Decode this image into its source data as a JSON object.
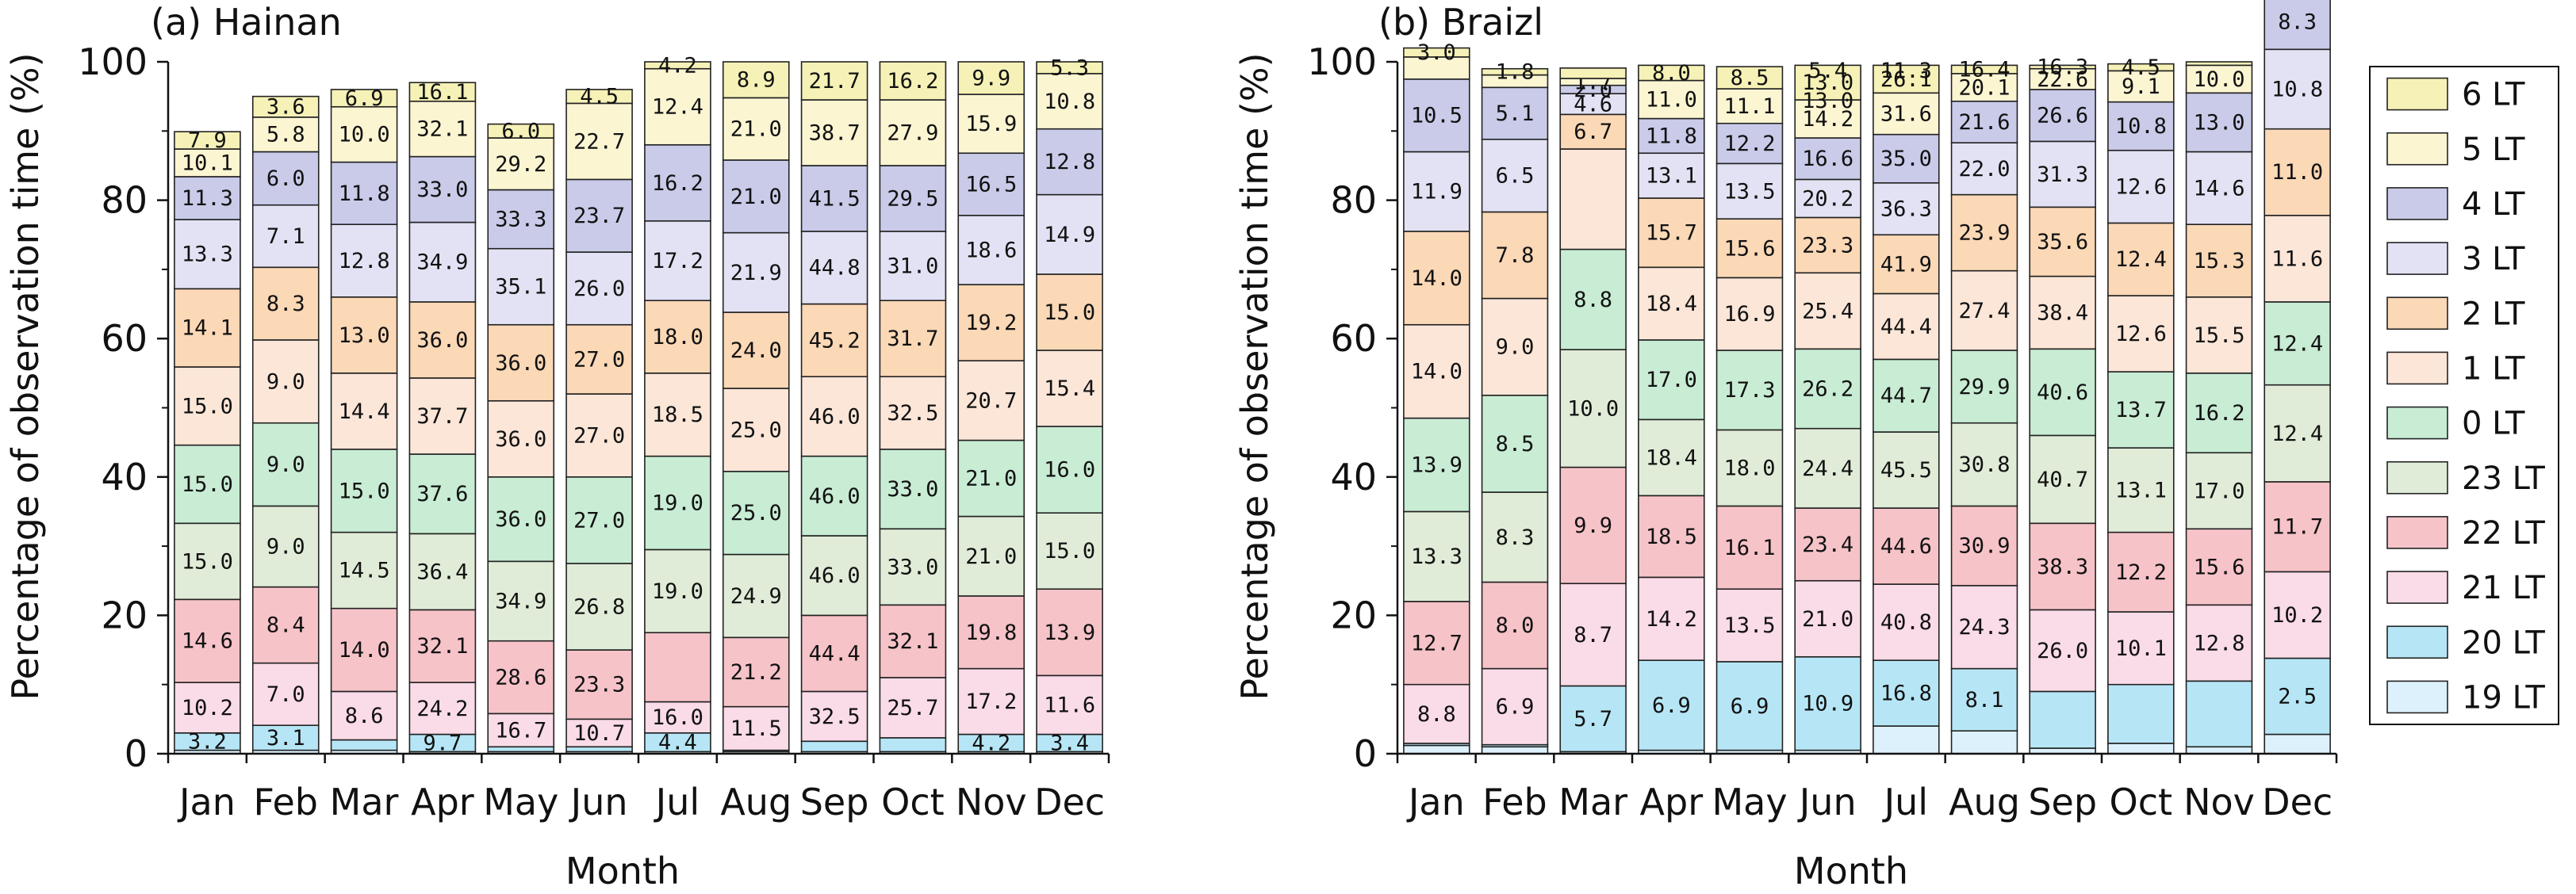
{
  "chart_data": [
    {
      "type": "bar",
      "stacked": true,
      "title": "(a) Hainan",
      "xlabel": "Month",
      "ylabel": "Percentage of observation time (%)",
      "ylim": [
        0,
        100
      ],
      "yticks": [
        "0",
        "20",
        "40",
        "60",
        "80",
        "100"
      ],
      "categories": [
        "Jan",
        "Feb",
        "Mar",
        "Apr",
        "May",
        "Jun",
        "Jul",
        "Aug",
        "Sep",
        "Oct",
        "Nov",
        "Dec"
      ],
      "series_order_bottom_to_top": [
        "19 LT",
        "20 LT",
        "21 LT",
        "22 LT",
        "23 LT",
        "0 LT",
        "1 LT",
        "2 LT",
        "3 LT",
        "4 LT",
        "5 LT",
        "6 LT"
      ],
      "segment_heights_percent": [
        [
          0.5,
          2.5,
          7.3,
          12.0,
          11.0,
          11.3,
          11.3,
          11.3,
          10.0,
          6.2,
          4.0,
          2.5
        ],
        [
          0.5,
          3.6,
          9.0,
          11.0,
          11.7,
          12.0,
          12.0,
          10.5,
          9.0,
          7.7,
          5.0,
          3.0
        ],
        [
          0.5,
          1.5,
          7.0,
          12.0,
          11.0,
          12.0,
          11.0,
          11.0,
          10.5,
          9.0,
          8.0,
          2.5
        ],
        [
          0.3,
          2.5,
          7.5,
          10.5,
          11.0,
          11.5,
          11.0,
          11.0,
          11.5,
          9.5,
          8.0,
          2.7
        ],
        [
          0.3,
          0.7,
          4.8,
          10.5,
          11.5,
          12.2,
          11.0,
          11.0,
          11.0,
          8.5,
          7.5,
          2.0
        ],
        [
          0.3,
          0.7,
          4.0,
          10.0,
          12.5,
          12.5,
          12.0,
          10.0,
          10.5,
          10.5,
          11.0,
          2.0
        ],
        [
          0.3,
          2.7,
          4.5,
          10.0,
          12.0,
          13.5,
          12.0,
          10.5,
          11.5,
          11.0,
          11.0,
          1.0
        ],
        [
          0.3,
          0.2,
          6.3,
          10.0,
          12.0,
          12.0,
          12.0,
          11.0,
          11.5,
          10.5,
          9.0,
          5.2
        ],
        [
          0.3,
          1.5,
          7.2,
          11.0,
          11.5,
          11.5,
          11.5,
          10.5,
          10.5,
          9.5,
          9.5,
          5.5
        ],
        [
          0.3,
          2.0,
          8.7,
          10.5,
          11.0,
          11.5,
          10.5,
          11.0,
          10.0,
          9.5,
          9.5,
          5.5
        ],
        [
          0.3,
          2.5,
          9.5,
          10.5,
          11.5,
          11.0,
          11.5,
          11.0,
          10.0,
          9.0,
          8.5,
          4.7
        ],
        [
          0.3,
          2.5,
          8.5,
          12.5,
          11.0,
          12.5,
          11.0,
          11.0,
          11.5,
          9.5,
          8.0,
          1.7
        ]
      ],
      "bar_labels": [
        [
          "",
          "3.2",
          "10.2",
          "14.6",
          "15.0",
          "15.0",
          "15.0",
          "14.1",
          "13.3",
          "11.3",
          "10.1",
          "7.9"
        ],
        [
          "",
          "3.1",
          "7.0",
          "8.4",
          "9.0",
          "9.0",
          "9.0",
          "8.3",
          "7.1",
          "6.0",
          "5.8",
          "3.6"
        ],
        [
          "",
          "",
          "8.6",
          "14.0",
          "14.5",
          "15.0",
          "14.4",
          "13.0",
          "12.8",
          "11.8",
          "10.0",
          "6.9"
        ],
        [
          "",
          "9.7",
          "24.2",
          "32.1",
          "36.4",
          "37.6",
          "37.7",
          "36.0",
          "34.9",
          "33.0",
          "32.1",
          "16.1"
        ],
        [
          "",
          "",
          "16.7",
          "28.6",
          "34.9",
          "36.0",
          "36.0",
          "36.0",
          "35.1",
          "33.3",
          "29.2",
          "6.0"
        ],
        [
          "",
          "",
          "10.7",
          "23.3",
          "26.8",
          "27.0",
          "27.0",
          "27.0",
          "26.0",
          "23.7",
          "22.7",
          "4.5"
        ],
        [
          "",
          "4.4",
          "16.0",
          "",
          "19.0",
          "19.0",
          "18.5",
          "18.0",
          "17.2",
          "16.2",
          "12.4",
          "4.2"
        ],
        [
          "",
          "",
          "11.5",
          "21.2",
          "24.9",
          "25.0",
          "25.0",
          "24.0",
          "21.9",
          "21.0",
          "21.0",
          "8.9"
        ],
        [
          "",
          "",
          "32.5",
          "44.4",
          "46.0",
          "46.0",
          "46.0",
          "45.2",
          "44.8",
          "41.5",
          "38.7",
          "21.7"
        ],
        [
          "",
          "",
          "25.7",
          "32.1",
          "33.0",
          "33.0",
          "32.5",
          "31.7",
          "31.0",
          "29.5",
          "27.9",
          "16.2"
        ],
        [
          "",
          "4.2",
          "17.2",
          "19.8",
          "21.0",
          "21.0",
          "20.7",
          "19.2",
          "18.6",
          "16.5",
          "15.9",
          "9.9"
        ],
        [
          "",
          "3.4",
          "11.6",
          "13.9",
          "15.0",
          "16.0",
          "15.4",
          "15.0",
          "14.9",
          "12.8",
          "10.8",
          "5.3"
        ]
      ]
    },
    {
      "type": "bar",
      "stacked": true,
      "title": "(b) Braizl",
      "xlabel": "Month",
      "ylabel": "Percentage of observation time (%)",
      "ylim": [
        0,
        100
      ],
      "yticks": [
        "0",
        "20",
        "40",
        "60",
        "80",
        "100"
      ],
      "categories": [
        "Jan",
        "Feb",
        "Mar",
        "Apr",
        "May",
        "Jun",
        "Jul",
        "Aug",
        "Sep",
        "Oct",
        "Nov",
        "Dec"
      ],
      "series_order_bottom_to_top": [
        "19 LT",
        "20 LT",
        "21 LT",
        "22 LT",
        "23 LT",
        "0 LT",
        "1 LT",
        "2 LT",
        "3 LT",
        "4 LT",
        "5 LT",
        "6 LT"
      ],
      "segment_heights_percent": [
        [
          1.2,
          0.3,
          8.5,
          12.0,
          13.0,
          13.5,
          13.5,
          13.5,
          11.5,
          10.5,
          3.2,
          1.3
        ],
        [
          1.0,
          0.3,
          11.0,
          12.5,
          13.0,
          14.0,
          14.0,
          12.5,
          10.5,
          7.5,
          1.8,
          0.9
        ],
        [
          0.3,
          9.5,
          14.8,
          16.8,
          17.0,
          14.5,
          14.5,
          5.0,
          3.0,
          1.2,
          1.0,
          1.5
        ],
        [
          0.5,
          13.0,
          12.0,
          11.8,
          11.0,
          11.5,
          10.5,
          10.0,
          6.5,
          5.0,
          5.5,
          2.2
        ],
        [
          0.5,
          12.8,
          10.5,
          12.0,
          11.0,
          11.5,
          10.5,
          8.5,
          8.0,
          5.8,
          5.0,
          3.2
        ],
        [
          0.5,
          13.5,
          11.0,
          10.5,
          11.5,
          11.5,
          11.0,
          8.0,
          5.5,
          6.0,
          5.5,
          5.0
        ],
        [
          4.0,
          9.5,
          11.0,
          11.0,
          11.0,
          10.5,
          9.5,
          8.5,
          7.5,
          7.0,
          6.0,
          4.0
        ],
        [
          3.3,
          9.0,
          12.0,
          11.5,
          12.0,
          10.5,
          11.5,
          11.0,
          7.5,
          6.0,
          4.0,
          1.2
        ],
        [
          0.8,
          8.2,
          11.8,
          12.5,
          12.7,
          12.5,
          10.5,
          10.0,
          9.5,
          7.5,
          3.0,
          0.5
        ],
        [
          1.5,
          8.5,
          10.5,
          11.5,
          12.2,
          11.0,
          11.0,
          10.5,
          10.5,
          7.0,
          4.5,
          1.0
        ],
        [
          1.0,
          9.5,
          11.0,
          11.0,
          11.0,
          11.5,
          11.0,
          10.5,
          10.5,
          8.5,
          4.0,
          0.5
        ],
        [
          2.8,
          11.0,
          12.5,
          13.0,
          14.0,
          12.0,
          12.5,
          12.5,
          11.5,
          8.0,
          0.2,
          0.2
        ]
      ],
      "bar_labels": [
        [
          "",
          "",
          "8.8",
          "12.7",
          "13.3",
          "13.9",
          "14.0",
          "14.0",
          "11.9",
          "10.5",
          "",
          "3.0"
        ],
        [
          "",
          "",
          "6.9",
          "8.0",
          "8.3",
          "8.5",
          "9.0",
          "7.8",
          "6.5",
          "5.1",
          "",
          "1.8"
        ],
        [
          "",
          "5.7",
          "8.7",
          "9.9",
          "10.0",
          "8.8",
          "",
          "6.7",
          "4.6",
          "2.0",
          "1.7",
          ""
        ],
        [
          "",
          "6.9",
          "14.2",
          "18.5",
          "18.4",
          "17.0",
          "18.4",
          "15.7",
          "13.1",
          "11.8",
          "11.0",
          "8.0"
        ],
        [
          "",
          "6.9",
          "13.5",
          "16.1",
          "18.0",
          "17.3",
          "16.9",
          "15.6",
          "13.5",
          "12.2",
          "11.1",
          "8.5"
        ],
        [
          "",
          "10.9",
          "21.0",
          "23.4",
          "24.4",
          "26.2",
          "25.4",
          "23.3",
          "20.2",
          "16.6",
          "14.2",
          "13.0"
        ],
        [
          "",
          "16.8",
          "40.8",
          "44.6",
          "45.5",
          "44.7",
          "44.4",
          "41.9",
          "36.3",
          "35.0",
          "31.6",
          "26.1"
        ],
        [
          "",
          "8.1",
          "24.3",
          "30.9",
          "30.8",
          "29.9",
          "27.4",
          "23.9",
          "22.0",
          "21.6",
          "20.1",
          "16.4"
        ],
        [
          "",
          "",
          "26.0",
          "38.3",
          "40.7",
          "40.6",
          "38.4",
          "35.6",
          "31.3",
          "26.6",
          "22.6",
          "16.3"
        ],
        [
          "",
          "",
          "10.1",
          "12.2",
          "13.1",
          "13.7",
          "12.6",
          "12.4",
          "12.6",
          "10.8",
          "9.1",
          "4.5"
        ],
        [
          "",
          "",
          "12.8",
          "15.6",
          "17.0",
          "16.2",
          "15.5",
          "15.3",
          "14.6",
          "13.0",
          "10.0",
          ""
        ],
        [
          "",
          "2.5",
          "10.2",
          "11.7",
          "12.4",
          "12.4",
          "11.6",
          "11.0",
          "10.8",
          "8.3",
          "",
          ""
        ]
      ],
      "bar_labels_extra": {
        "Jun": [
          "5.4",
          "13.0"
        ],
        "Jul": [
          "11.3"
        ]
      }
    }
  ],
  "legend": {
    "placement": "right",
    "items": [
      {
        "label": "6 LT",
        "color": "#f6f1b6"
      },
      {
        "label": "5 LT",
        "color": "#fbf5d2"
      },
      {
        "label": "4 LT",
        "color": "#c9cbe9"
      },
      {
        "label": "3 LT",
        "color": "#e3e2f4"
      },
      {
        "label": "2 LT",
        "color": "#fbd8b6"
      },
      {
        "label": "1 LT",
        "color": "#fbe6d8"
      },
      {
        "label": "0 LT",
        "color": "#c8ecd4"
      },
      {
        "label": "23 LT",
        "color": "#e0ecd8"
      },
      {
        "label": "22 LT",
        "color": "#f6c3c9"
      },
      {
        "label": "21 LT",
        "color": "#fadbe8"
      },
      {
        "label": "20 LT",
        "color": "#b6e6f6"
      },
      {
        "label": "19 LT",
        "color": "#dcf1fb"
      }
    ]
  }
}
